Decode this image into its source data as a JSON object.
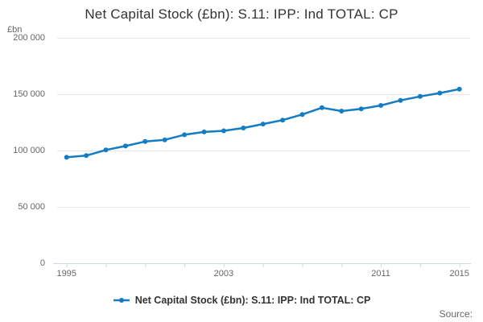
{
  "header": {
    "title": "Net Capital Stock (£bn): S.11: IPP: Ind TOTAL: CP"
  },
  "legend": {
    "label": "Net Capital Stock (£bn): S.11: IPP: Ind TOTAL: CP"
  },
  "footer": {
    "source_label": "Source:"
  },
  "chart_data": {
    "type": "line",
    "title": "Net Capital Stock (£bn): S.11: IPP: Ind TOTAL: CP",
    "unit": "£bn",
    "xlabel": "",
    "ylabel": "£bn",
    "x": [
      1995,
      1996,
      1997,
      1998,
      1999,
      2000,
      2001,
      2002,
      2003,
      2004,
      2005,
      2006,
      2007,
      2008,
      2009,
      2010,
      2011,
      2012,
      2013,
      2014,
      2015
    ],
    "series": [
      {
        "name": "Net Capital Stock (£bn): S.11: IPP: Ind TOTAL: CP",
        "values": [
          94000,
          95500,
          100500,
          104000,
          108000,
          109500,
          114000,
          116500,
          117500,
          120000,
          123500,
          127000,
          132000,
          138000,
          135000,
          137000,
          140000,
          144500,
          148000,
          151000,
          154500
        ]
      }
    ],
    "ylim": [
      0,
      200000
    ],
    "xlim": [
      1995,
      2015
    ],
    "y_ticks": [
      {
        "value": 0,
        "label": "0"
      },
      {
        "value": 50000,
        "label": "50 000"
      },
      {
        "value": 100000,
        "label": "100 000"
      },
      {
        "value": 150000,
        "label": "150 000"
      },
      {
        "value": 200000,
        "label": "200 000"
      }
    ],
    "x_ticks": [
      {
        "year": 1995,
        "label": "1995"
      },
      {
        "year": 1997,
        "label": ""
      },
      {
        "year": 1999,
        "label": ""
      },
      {
        "year": 2001,
        "label": ""
      },
      {
        "year": 2003,
        "label": "2003"
      },
      {
        "year": 2005,
        "label": ""
      },
      {
        "year": 2007,
        "label": ""
      },
      {
        "year": 2009,
        "label": ""
      },
      {
        "year": 2011,
        "label": "2011"
      },
      {
        "year": 2013,
        "label": ""
      },
      {
        "year": 2015,
        "label": "2015"
      }
    ],
    "grid": true,
    "legend_position": "bottom",
    "marker": "circle",
    "colors": {
      "line": "#137cc3",
      "grid": "#e6e6e6",
      "axis": "#ccd6eb",
      "tick_label": "#666666",
      "title": "#333333",
      "legend_text": "#333333",
      "source_text": "#666666"
    }
  }
}
